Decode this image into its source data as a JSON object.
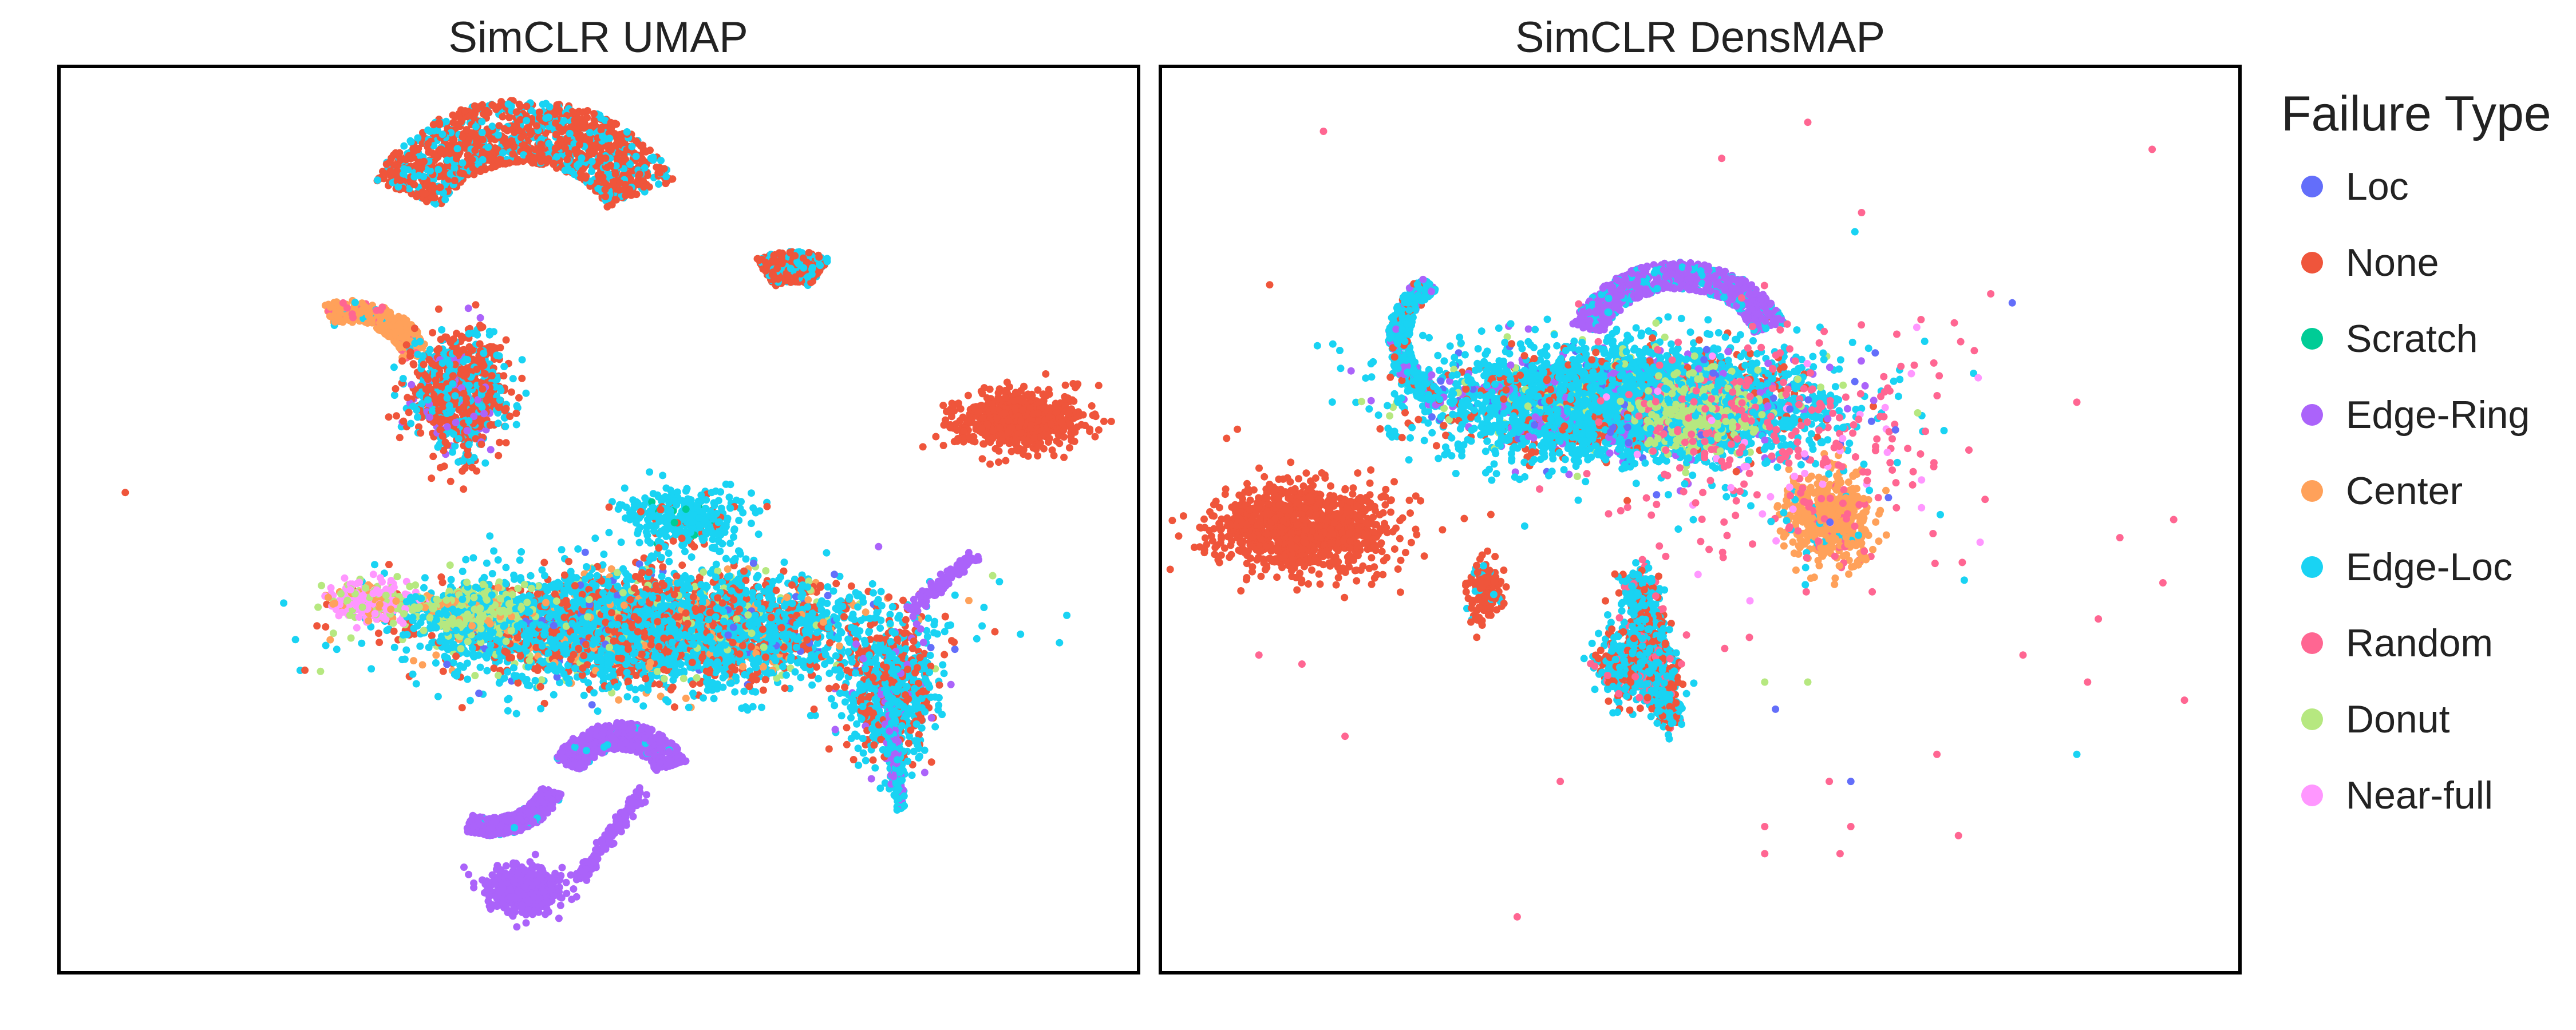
{
  "legend": {
    "title": "Failure Type",
    "items": [
      {
        "label": "Loc",
        "color": "#636efa"
      },
      {
        "label": "None",
        "color": "#ef553b"
      },
      {
        "label": "Scratch",
        "color": "#00cc96"
      },
      {
        "label": "Edge-Ring",
        "color": "#ab63fa"
      },
      {
        "label": "Center",
        "color": "#ffa15a"
      },
      {
        "label": "Edge-Loc",
        "color": "#19d3f3"
      },
      {
        "label": "Random",
        "color": "#ff6692"
      },
      {
        "label": "Donut",
        "color": "#b6e880"
      },
      {
        "label": "Near-full",
        "color": "#ff97ff"
      }
    ]
  },
  "chart_data": [
    {
      "type": "scatter",
      "title": "SimCLR UMAP",
      "xlabel": "",
      "ylabel": "",
      "axes_visible": false,
      "grid": false,
      "xlim": [
        0,
        100
      ],
      "ylim": [
        0,
        100
      ],
      "legend_position": "right",
      "clusters": [
        {
          "id": "u-top-crescent",
          "shape": "crescent",
          "center": [
            43,
            81
          ],
          "radius": 12,
          "start_deg": 205,
          "end_deg": 335,
          "thickness": 7,
          "points": 1400,
          "mix": [
            [
              "None",
              0.72
            ],
            [
              "Edge-Loc",
              0.28
            ]
          ]
        },
        {
          "id": "u-right-blob",
          "shape": "ellipse",
          "center": [
            89,
            61
          ],
          "size": [
            6,
            3.2
          ],
          "points": 650,
          "mix": [
            [
              "None",
              1.0
            ]
          ]
        },
        {
          "id": "u-small-arc",
          "shape": "crescent",
          "center": [
            68,
            73
          ],
          "radius": 5,
          "start_deg": 240,
          "end_deg": 300,
          "thickness": 3.5,
          "points": 300,
          "mix": [
            [
              "None",
              0.7
            ],
            [
              "Edge-Loc",
              0.3
            ]
          ]
        },
        {
          "id": "u-left-center-arc",
          "shape": "crescent",
          "center": [
            27,
            67
          ],
          "radius": 6,
          "start_deg": 250,
          "end_deg": 350,
          "thickness": 2.5,
          "points": 300,
          "mix": [
            [
              "Center",
              0.85
            ],
            [
              "Random",
              0.08
            ],
            [
              "Edge-Loc",
              0.07
            ]
          ]
        },
        {
          "id": "u-mixed-blob",
          "shape": "ellipse",
          "center": [
            37,
            64
          ],
          "size": [
            4.2,
            6.2
          ],
          "points": 900,
          "mix": [
            [
              "None",
              0.55
            ],
            [
              "Edge-Loc",
              0.38
            ],
            [
              "Edge-Ring",
              0.07
            ]
          ]
        },
        {
          "id": "u-main-mass",
          "shape": "ellipse",
          "center": [
            55,
            38
          ],
          "size": [
            20,
            6
          ],
          "points": 4200,
          "mix": [
            [
              "Edge-Loc",
              0.62
            ],
            [
              "None",
              0.25
            ],
            [
              "Center",
              0.05
            ],
            [
              "Donut",
              0.05
            ],
            [
              "Loc",
              0.03
            ]
          ]
        },
        {
          "id": "u-main-tail",
          "shape": "ellipse",
          "center": [
            77,
            31
          ],
          "size": [
            4,
            7
          ],
          "points": 700,
          "mix": [
            [
              "Edge-Loc",
              0.6
            ],
            [
              "None",
              0.35
            ],
            [
              "Edge-Ring",
              0.05
            ]
          ]
        },
        {
          "id": "u-left-pink",
          "shape": "ellipse",
          "center": [
            29,
            41
          ],
          "size": [
            4,
            2
          ],
          "points": 350,
          "mix": [
            [
              "Near-full",
              0.6
            ],
            [
              "Donut",
              0.25
            ],
            [
              "Center",
              0.15
            ]
          ]
        },
        {
          "id": "u-donut-core",
          "shape": "ellipse",
          "center": [
            38,
            40
          ],
          "size": [
            5,
            2.5
          ],
          "points": 500,
          "mix": [
            [
              "Donut",
              0.6
            ],
            [
              "Edge-Loc",
              0.3
            ],
            [
              "Center",
              0.1
            ]
          ]
        },
        {
          "id": "u-upper-streaks",
          "shape": "ellipse",
          "center": [
            58,
            50
          ],
          "size": [
            6,
            3.5
          ],
          "points": 350,
          "mix": [
            [
              "Edge-Loc",
              0.9
            ],
            [
              "Scratch",
              0.05
            ],
            [
              "None",
              0.05
            ]
          ]
        },
        {
          "id": "u-ring-arc1",
          "shape": "crescent",
          "center": [
            40,
            22
          ],
          "radius": 6,
          "start_deg": 20,
          "end_deg": 110,
          "thickness": 2,
          "points": 450,
          "mix": [
            [
              "Edge-Ring",
              0.95
            ],
            [
              "Edge-Loc",
              0.05
            ]
          ]
        },
        {
          "id": "u-ring-arc2",
          "shape": "crescent",
          "center": [
            52,
            21
          ],
          "radius": 5,
          "start_deg": 200,
          "end_deg": 340,
          "thickness": 3,
          "points": 650,
          "mix": [
            [
              "Edge-Ring",
              0.93
            ],
            [
              "Edge-Loc",
              0.07
            ]
          ]
        },
        {
          "id": "u-ring-bottom",
          "shape": "ellipse",
          "center": [
            43,
            9
          ],
          "size": [
            3.2,
            2.4
          ],
          "points": 550,
          "mix": [
            [
              "Edge-Ring",
              1.0
            ]
          ]
        },
        {
          "id": "u-ring-streak",
          "shape": "line",
          "from": [
            48,
            10
          ],
          "to": [
            54,
            20
          ],
          "width": 0.8,
          "points": 160,
          "mix": [
            [
              "Edge-Ring",
              1.0
            ]
          ]
        },
        {
          "id": "u-right-ring-arc",
          "shape": "line",
          "from": [
            79,
            40
          ],
          "to": [
            85,
            46
          ],
          "width": 0.8,
          "points": 130,
          "mix": [
            [
              "Edge-Ring",
              1.0
            ]
          ]
        },
        {
          "id": "u-tail-down",
          "shape": "line",
          "from": [
            77,
            31
          ],
          "to": [
            78,
            18
          ],
          "width": 0.8,
          "points": 160,
          "mix": [
            [
              "Edge-Loc",
              0.7
            ],
            [
              "Edge-Ring",
              0.3
            ]
          ]
        }
      ],
      "outliers": [
        {
          "x": 6,
          "y": 53,
          "series": "None"
        },
        {
          "x": 70,
          "y": 29,
          "series": "None"
        },
        {
          "x": 76,
          "y": 47,
          "series": "Edge-Ring"
        }
      ]
    },
    {
      "type": "scatter",
      "title": "SimCLR DensMAP",
      "xlabel": "",
      "ylabel": "",
      "axes_visible": false,
      "grid": false,
      "xlim": [
        0,
        100
      ],
      "ylim": [
        0,
        100
      ],
      "legend_position": "right",
      "clusters": [
        {
          "id": "d-left-blob",
          "shape": "ellipse",
          "center": [
            13,
            49
          ],
          "size": [
            8,
            4.8
          ],
          "points": 1100,
          "mix": [
            [
              "None",
              1.0
            ]
          ]
        },
        {
          "id": "d-small-blob",
          "shape": "ellipse",
          "center": [
            30,
            42
          ],
          "size": [
            1.6,
            3.5
          ],
          "points": 150,
          "mix": [
            [
              "None",
              0.9
            ],
            [
              "Edge-Loc",
              0.1
            ]
          ]
        },
        {
          "id": "d-main-mass",
          "shape": "ellipse",
          "center": [
            43,
            63
          ],
          "size": [
            17,
            6
          ],
          "points": 4200,
          "mix": [
            [
              "Edge-Loc",
              0.75
            ],
            [
              "None",
              0.12
            ],
            [
              "Edge-Ring",
              0.06
            ],
            [
              "Donut",
              0.04
            ],
            [
              "Loc",
              0.03
            ]
          ]
        },
        {
          "id": "d-top-ring",
          "shape": "crescent",
          "center": [
            48,
            68
          ],
          "radius": 9,
          "start_deg": 200,
          "end_deg": 340,
          "thickness": 3,
          "points": 900,
          "mix": [
            [
              "Edge-Ring",
              0.8
            ],
            [
              "Edge-Loc",
              0.2
            ]
          ]
        },
        {
          "id": "d-donut-cloud",
          "shape": "ellipse",
          "center": [
            50,
            62
          ],
          "size": [
            5,
            4
          ],
          "points": 700,
          "mix": [
            [
              "Donut",
              0.6
            ],
            [
              "Edge-Loc",
              0.25
            ],
            [
              "Random",
              0.15
            ]
          ]
        },
        {
          "id": "d-center-blob",
          "shape": "ellipse",
          "center": [
            62,
            50
          ],
          "size": [
            4,
            5
          ],
          "points": 500,
          "mix": [
            [
              "Center",
              0.9
            ],
            [
              "Random",
              0.06
            ],
            [
              "Edge-Loc",
              0.04
            ]
          ]
        },
        {
          "id": "d-stem",
          "shape": "line",
          "from": [
            44,
            44
          ],
          "to": [
            47,
            28
          ],
          "width": 2,
          "points": 700,
          "mix": [
            [
              "Edge-Loc",
              0.7
            ],
            [
              "None",
              0.22
            ],
            [
              "Random",
              0.08
            ]
          ]
        },
        {
          "id": "d-foot",
          "shape": "ellipse",
          "center": [
            44,
            34
          ],
          "size": [
            3.5,
            4
          ],
          "points": 500,
          "mix": [
            [
              "Edge-Loc",
              0.6
            ],
            [
              "None",
              0.3
            ],
            [
              "Random",
              0.1
            ]
          ]
        },
        {
          "id": "d-left-curls",
          "shape": "crescent",
          "center": [
            30,
            70
          ],
          "radius": 8,
          "start_deg": 120,
          "end_deg": 230,
          "thickness": 2,
          "points": 450,
          "mix": [
            [
              "Edge-Loc",
              0.75
            ],
            [
              "Edge-Ring",
              0.15
            ],
            [
              "None",
              0.1
            ]
          ]
        },
        {
          "id": "d-random-halo",
          "shape": "ellipse",
          "center": [
            58,
            58
          ],
          "size": [
            16,
            14
          ],
          "points": 320,
          "mix": [
            [
              "Random",
              0.7
            ],
            [
              "Near-full",
              0.15
            ],
            [
              "Edge-Loc",
              0.1
            ],
            [
              "Loc",
              0.05
            ]
          ]
        }
      ],
      "outliers": [
        {
          "x": 15,
          "y": 93,
          "series": "Random"
        },
        {
          "x": 60,
          "y": 94,
          "series": "Random"
        },
        {
          "x": 92,
          "y": 91,
          "series": "Random"
        },
        {
          "x": 52,
          "y": 90,
          "series": "Random"
        },
        {
          "x": 65,
          "y": 84,
          "series": "Random"
        },
        {
          "x": 77,
          "y": 75,
          "series": "Random"
        },
        {
          "x": 79,
          "y": 74,
          "series": "Loc"
        },
        {
          "x": 10,
          "y": 76,
          "series": "None"
        },
        {
          "x": 7,
          "y": 60,
          "series": "None"
        },
        {
          "x": 6,
          "y": 59,
          "series": "None"
        },
        {
          "x": 85,
          "y": 63,
          "series": "Random"
        },
        {
          "x": 89,
          "y": 48,
          "series": "Random"
        },
        {
          "x": 94,
          "y": 50,
          "series": "Random"
        },
        {
          "x": 93,
          "y": 43,
          "series": "Random"
        },
        {
          "x": 87,
          "y": 39,
          "series": "Random"
        },
        {
          "x": 80,
          "y": 35,
          "series": "Random"
        },
        {
          "x": 95,
          "y": 30,
          "series": "Random"
        },
        {
          "x": 85,
          "y": 24,
          "series": "Edge-Loc"
        },
        {
          "x": 86,
          "y": 32,
          "series": "Random"
        },
        {
          "x": 17,
          "y": 26,
          "series": "Random"
        },
        {
          "x": 13,
          "y": 34,
          "series": "Random"
        },
        {
          "x": 9,
          "y": 35,
          "series": "Random"
        },
        {
          "x": 37,
          "y": 21,
          "series": "Random"
        },
        {
          "x": 56,
          "y": 16,
          "series": "Random"
        },
        {
          "x": 62,
          "y": 21,
          "series": "Random"
        },
        {
          "x": 64,
          "y": 16,
          "series": "Random"
        },
        {
          "x": 64,
          "y": 21,
          "series": "Loc"
        },
        {
          "x": 56,
          "y": 13,
          "series": "Random"
        },
        {
          "x": 63,
          "y": 13,
          "series": "Random"
        },
        {
          "x": 74,
          "y": 15,
          "series": "Random"
        },
        {
          "x": 72,
          "y": 24,
          "series": "Random"
        },
        {
          "x": 33,
          "y": 6,
          "series": "Random"
        },
        {
          "x": 56,
          "y": 32,
          "series": "Donut"
        },
        {
          "x": 57,
          "y": 29,
          "series": "Loc"
        },
        {
          "x": 60,
          "y": 32,
          "series": "Donut"
        }
      ]
    }
  ]
}
